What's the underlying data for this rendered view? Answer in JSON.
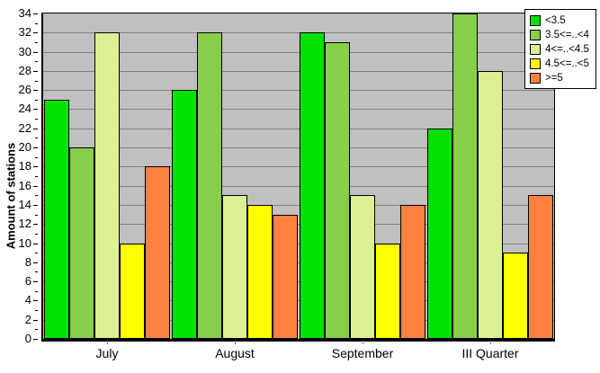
{
  "chart_data": {
    "type": "bar",
    "title": "",
    "xlabel": "",
    "ylabel": "Amount of stations",
    "categories": [
      "July",
      "August",
      "September",
      "III Quarter"
    ],
    "series": [
      {
        "name": "<3.5",
        "color": "#00E100",
        "values": [
          25,
          26,
          32,
          22
        ]
      },
      {
        "name": "3.5<=..<4",
        "color": "#87CE49",
        "values": [
          20,
          32,
          31,
          34
        ]
      },
      {
        "name": "4<=..<4.5",
        "color": "#DCF195",
        "values": [
          32,
          15,
          15,
          28
        ]
      },
      {
        "name": "4.5<=..<5",
        "color": "#FFFF00",
        "values": [
          10,
          14,
          10,
          9
        ]
      },
      {
        "name": ">=5",
        "color": "#FF8142",
        "values": [
          18,
          13,
          14,
          15
        ]
      }
    ],
    "ylim": [
      0,
      34
    ],
    "ytick_step": 2,
    "yticks": [
      0,
      2,
      4,
      6,
      8,
      10,
      12,
      14,
      16,
      18,
      20,
      22,
      24,
      26,
      28,
      30,
      32,
      34
    ],
    "grid": true,
    "legend_position": "top-right",
    "plot_bg_color": "#C0C0C0",
    "grid_color": "#808080",
    "axis_color": "#000000",
    "background_color": "#FFFFFF"
  }
}
